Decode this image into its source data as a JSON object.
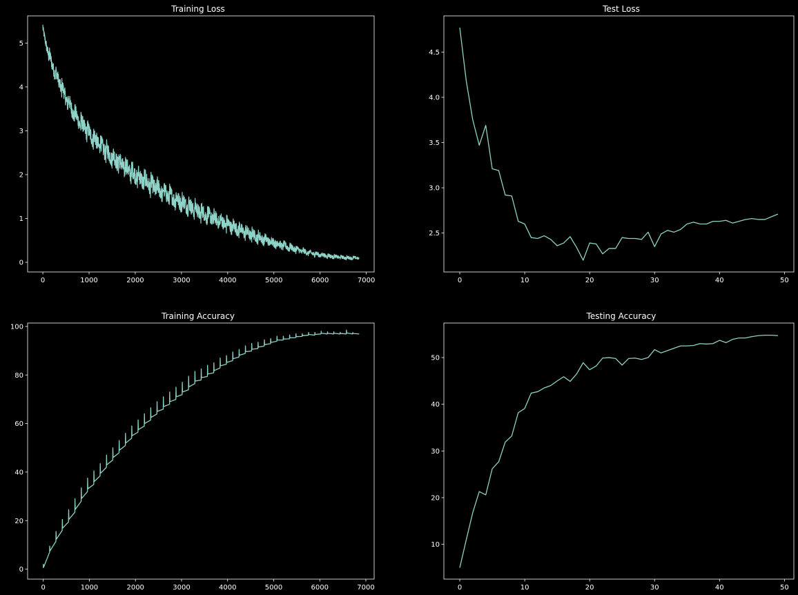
{
  "figure": {
    "background": "#000000",
    "foreground": "#ffffff",
    "line_color": "#8dd3c7"
  },
  "chart_data": [
    {
      "type": "line",
      "title": "Training Loss",
      "xlabel": "",
      "ylabel": "",
      "xlim": [
        -330,
        7170
      ],
      "ylim": [
        -0.22,
        5.62
      ],
      "xticks": [
        0,
        1000,
        2000,
        3000,
        4000,
        5000,
        6000,
        7000
      ],
      "yticks": [
        0,
        1,
        2,
        3,
        4,
        5
      ],
      "grid": false,
      "legend": "none",
      "series": [
        {
          "style": "noisy-dense",
          "n_points": 6840,
          "x": [
            0,
            50,
            100,
            200,
            300,
            400,
            500,
            600,
            700,
            800,
            1000,
            1200,
            1400,
            1600,
            1800,
            2000,
            2200,
            2400,
            2600,
            2800,
            3000,
            3200,
            3400,
            3600,
            3800,
            4000,
            4200,
            4400,
            4600,
            4800,
            5000,
            5200,
            5400,
            5600,
            5800,
            6000,
            6200,
            6400,
            6600,
            6840
          ],
          "center": [
            5.3,
            5.05,
            4.85,
            4.5,
            4.25,
            4.0,
            3.75,
            3.55,
            3.35,
            3.2,
            2.95,
            2.72,
            2.5,
            2.32,
            2.15,
            2.0,
            1.86,
            1.73,
            1.6,
            1.48,
            1.37,
            1.26,
            1.15,
            1.05,
            0.95,
            0.86,
            0.77,
            0.68,
            0.6,
            0.52,
            0.45,
            0.38,
            0.32,
            0.26,
            0.21,
            0.17,
            0.14,
            0.12,
            0.1,
            0.1
          ],
          "band": [
            0.1,
            0.15,
            0.18,
            0.2,
            0.2,
            0.22,
            0.24,
            0.24,
            0.25,
            0.25,
            0.26,
            0.27,
            0.27,
            0.28,
            0.28,
            0.28,
            0.28,
            0.28,
            0.27,
            0.26,
            0.25,
            0.25,
            0.24,
            0.23,
            0.22,
            0.21,
            0.2,
            0.19,
            0.17,
            0.15,
            0.14,
            0.12,
            0.1,
            0.09,
            0.08,
            0.07,
            0.06,
            0.05,
            0.05,
            0.04
          ]
        }
      ]
    },
    {
      "type": "line",
      "title": "Test Loss",
      "xlabel": "",
      "ylabel": "",
      "xlim": [
        -2.45,
        51.45
      ],
      "ylim": [
        2.07,
        4.9
      ],
      "xticks": [
        0,
        10,
        20,
        30,
        40,
        50
      ],
      "yticks": [
        2.5,
        3.0,
        3.5,
        4.0,
        4.5
      ],
      "grid": false,
      "legend": "none",
      "series": [
        {
          "x": [
            0,
            1,
            2,
            3,
            4,
            5,
            6,
            7,
            8,
            9,
            10,
            11,
            12,
            13,
            14,
            15,
            16,
            17,
            18,
            19,
            20,
            21,
            22,
            23,
            24,
            25,
            26,
            27,
            28,
            29,
            30,
            31,
            32,
            33,
            34,
            35,
            36,
            37,
            38,
            39,
            40,
            41,
            42,
            43,
            44,
            45,
            46,
            47,
            48,
            49
          ],
          "y": [
            4.77,
            4.18,
            3.75,
            3.47,
            3.69,
            3.21,
            3.19,
            2.92,
            2.91,
            2.63,
            2.6,
            2.45,
            2.44,
            2.47,
            2.43,
            2.36,
            2.39,
            2.46,
            2.34,
            2.2,
            2.39,
            2.38,
            2.27,
            2.33,
            2.33,
            2.45,
            2.44,
            2.44,
            2.43,
            2.51,
            2.35,
            2.49,
            2.53,
            2.51,
            2.54,
            2.6,
            2.62,
            2.6,
            2.6,
            2.63,
            2.63,
            2.64,
            2.61,
            2.63,
            2.65,
            2.66,
            2.65,
            2.65,
            2.68,
            2.71
          ]
        }
      ]
    },
    {
      "type": "line",
      "title": "Training Accuracy",
      "xlabel": "",
      "ylabel": "",
      "xlim": [
        -340,
        7180
      ],
      "ylim": [
        -4.1,
        101.4
      ],
      "xticks": [
        0,
        1000,
        2000,
        3000,
        4000,
        5000,
        6000,
        7000
      ],
      "yticks": [
        0,
        20,
        40,
        60,
        80,
        100
      ],
      "grid": false,
      "legend": "none",
      "series": [
        {
          "style": "sawtooth-per-epoch",
          "steps_per_epoch": 137,
          "x": [
            0,
            137,
            274,
            411,
            548,
            685,
            822,
            959,
            1096,
            1233,
            1370,
            1507,
            1644,
            1781,
            1918,
            2055,
            2192,
            2329,
            2466,
            2603,
            2740,
            2877,
            3014,
            3151,
            3288,
            3425,
            3562,
            3699,
            3836,
            3973,
            4110,
            4247,
            4384,
            4521,
            4658,
            4795,
            4932,
            5069,
            5206,
            5343,
            5480,
            5617,
            5754,
            5891,
            6028,
            6165,
            6302,
            6439,
            6576,
            6713,
            6850
          ],
          "epoch_start": [
            0.5,
            7.0,
            11.5,
            16.0,
            19.5,
            23.5,
            28.0,
            32.0,
            35.0,
            38.5,
            42.0,
            45.0,
            48.0,
            51.0,
            54.0,
            56.5,
            59.0,
            61.5,
            64.0,
            66.0,
            68.0,
            70.0,
            72.0,
            74.0,
            76.5,
            78.0,
            79.5,
            81.0,
            83.0,
            84.5,
            86.0,
            87.5,
            89.0,
            90.0,
            91.0,
            92.0,
            93.0,
            94.0,
            94.5,
            95.0,
            95.5,
            96.0,
            96.5,
            96.5,
            97.0,
            97.0,
            97.0,
            97.0,
            97.0,
            97.0,
            97.0
          ],
          "epoch_spike": [
            1.5,
            2.5,
            4.0,
            4.5,
            5.0,
            5.5,
            5.5,
            5.5,
            5.5,
            5.0,
            5.0,
            5.0,
            5.0,
            5.0,
            5.0,
            5.0,
            5.0,
            5.0,
            5.0,
            5.0,
            5.0,
            5.0,
            5.0,
            5.5,
            5.0,
            4.5,
            4.5,
            4.0,
            4.0,
            3.5,
            3.5,
            3.0,
            3.0,
            3.0,
            2.5,
            2.5,
            2.0,
            2.0,
            1.5,
            1.5,
            1.5,
            1.0,
            1.0,
            1.0,
            1.0,
            0.8,
            0.8,
            0.6,
            1.5,
            0.5,
            0.3
          ],
          "end_value": 96.8
        }
      ]
    },
    {
      "type": "line",
      "title": "Testing Accuracy",
      "xlabel": "",
      "ylabel": "",
      "xlim": [
        -2.45,
        51.45
      ],
      "ylim": [
        2.55,
        57.4
      ],
      "xticks": [
        0,
        10,
        20,
        30,
        40,
        50
      ],
      "yticks": [
        10,
        20,
        30,
        40,
        50
      ],
      "grid": false,
      "legend": "none",
      "series": [
        {
          "x": [
            0,
            1,
            2,
            3,
            4,
            5,
            6,
            7,
            8,
            9,
            10,
            11,
            12,
            13,
            14,
            15,
            16,
            17,
            18,
            19,
            20,
            21,
            22,
            23,
            24,
            25,
            26,
            27,
            28,
            29,
            30,
            31,
            32,
            33,
            34,
            35,
            36,
            37,
            38,
            39,
            40,
            41,
            42,
            43,
            44,
            45,
            46,
            47,
            48,
            49
          ],
          "y": [
            5.0,
            11.0,
            16.8,
            21.3,
            20.6,
            26.2,
            27.7,
            31.9,
            33.2,
            38.2,
            39.1,
            42.4,
            42.7,
            43.5,
            44.0,
            45.0,
            45.9,
            44.9,
            46.5,
            48.9,
            47.4,
            48.2,
            49.9,
            50.0,
            49.8,
            48.4,
            49.8,
            49.9,
            49.6,
            50.0,
            51.7,
            51.0,
            51.5,
            52.0,
            52.5,
            52.5,
            52.6,
            53.0,
            52.9,
            53.0,
            53.7,
            53.2,
            53.9,
            54.2,
            54.2,
            54.5,
            54.7,
            54.8,
            54.8,
            54.7
          ]
        }
      ]
    }
  ]
}
